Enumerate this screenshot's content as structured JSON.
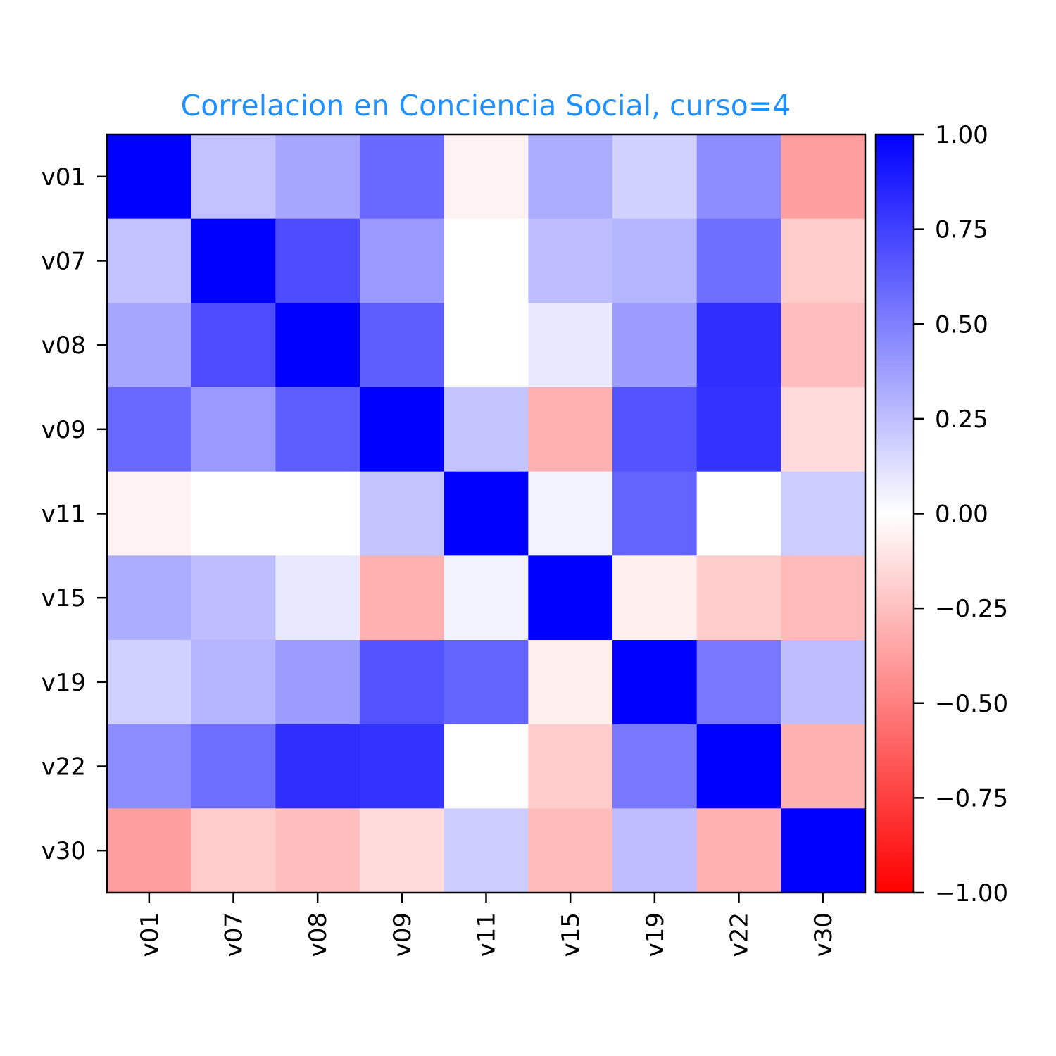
{
  "chart_data": {
    "type": "heatmap",
    "title": "Correlacion en Conciencia Social, curso=4",
    "title_color": "#1e90ff",
    "rows": [
      "v01",
      "v07",
      "v08",
      "v09",
      "v11",
      "v15",
      "v19",
      "v22",
      "v30"
    ],
    "cols": [
      "v01",
      "v07",
      "v08",
      "v09",
      "v11",
      "v15",
      "v19",
      "v22",
      "v30"
    ],
    "values": [
      [
        1.0,
        0.24,
        0.35,
        0.59,
        -0.05,
        0.32,
        0.18,
        0.45,
        -0.38
      ],
      [
        0.24,
        1.0,
        0.7,
        0.4,
        0.0,
        0.26,
        0.29,
        0.57,
        -0.2
      ],
      [
        0.35,
        0.7,
        1.0,
        0.63,
        0.0,
        0.09,
        0.39,
        0.82,
        -0.26
      ],
      [
        0.59,
        0.4,
        0.63,
        1.0,
        0.23,
        -0.31,
        0.67,
        0.8,
        -0.14
      ],
      [
        -0.05,
        0.0,
        0.0,
        0.23,
        1.0,
        0.05,
        0.61,
        0.0,
        0.2
      ],
      [
        0.32,
        0.26,
        0.09,
        -0.31,
        0.05,
        1.0,
        -0.06,
        -0.2,
        -0.27
      ],
      [
        0.18,
        0.29,
        0.39,
        0.67,
        0.61,
        -0.06,
        1.0,
        0.53,
        0.26
      ],
      [
        0.45,
        0.57,
        0.82,
        0.8,
        0.0,
        -0.2,
        0.53,
        1.0,
        -0.31
      ],
      [
        -0.38,
        -0.2,
        -0.26,
        -0.14,
        0.2,
        -0.27,
        0.26,
        -0.31,
        1.0
      ]
    ],
    "colormap": {
      "low": "#ff0000",
      "mid": "#ffffff",
      "high": "#0000ff"
    },
    "colorbar": {
      "range": [
        -1.0,
        1.0
      ],
      "ticks": [
        1.0,
        0.75,
        0.5,
        0.25,
        0.0,
        -0.25,
        -0.5,
        -0.75,
        -1.0
      ],
      "tick_labels": [
        "1.00",
        "0.75",
        "0.50",
        "0.25",
        "0.00",
        "−0.25",
        "−0.50",
        "−0.75",
        "−1.00"
      ]
    },
    "xlabel_rotation": "vertical",
    "grid": false
  }
}
